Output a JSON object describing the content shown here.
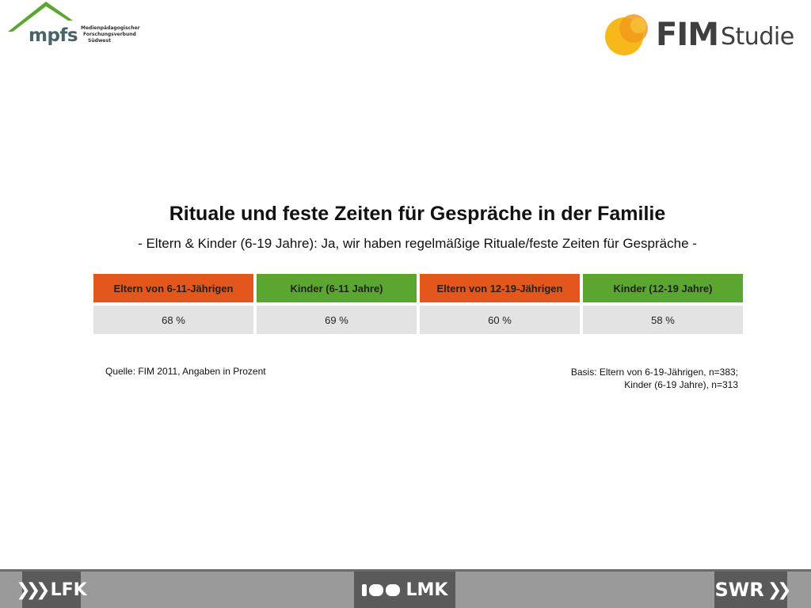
{
  "logos": {
    "mpfs": {
      "word": "mpfs",
      "tagline": [
        "Medienpädagogischer",
        "Forschungsverbund",
        "Südwest"
      ],
      "color": "#49636b",
      "roof_color": "#5ba630"
    },
    "fim": {
      "word": "FIM",
      "word2": "Studie",
      "circle_colors": [
        "#f7b81b",
        "#f19a1c"
      ]
    }
  },
  "title": "Rituale und feste Zeiten für Gespräche in der Familie",
  "subtitle": "- Eltern & Kinder (6-19 Jahre): Ja, wir haben regelmäßige Rituale/feste Zeiten für Gespräche -",
  "table": {
    "headers": [
      {
        "label": "Eltern von 6-11-Jährigen",
        "color": "#e4571c"
      },
      {
        "label": "Kinder (6-11 Jahre)",
        "color": "#5ba630"
      },
      {
        "label": "Eltern von 12-19-Jährigen",
        "color": "#e4571c"
      },
      {
        "label": "Kinder (12-19 Jahre)",
        "color": "#5ba630"
      }
    ],
    "values": [
      "68 %",
      "69 %",
      "60 %",
      "58 %"
    ]
  },
  "source": "Quelle: FIM 2011,  Angaben in Prozent",
  "basis": [
    "Basis: Eltern von 6-19-Jährigen, n=383;",
    "Kinder (6-19 Jahre), n=313"
  ],
  "footer": {
    "left": "LFK",
    "center": "LMK",
    "right": "SWR",
    "left_chevrons": "❯❯❯",
    "right_chevrons": "❯❯"
  }
}
